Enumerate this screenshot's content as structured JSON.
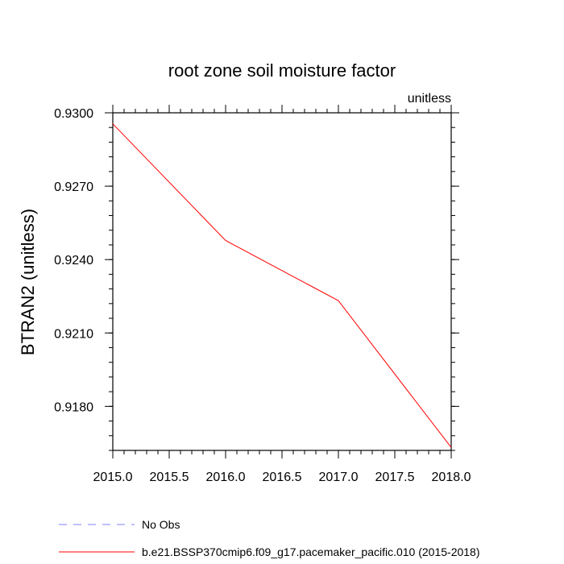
{
  "chart_data": {
    "type": "line",
    "title": "root zone soil moisture factor",
    "units_label": "unitless",
    "ylabel": "BTRAN2  (unitless)",
    "xlabel": "",
    "xlim": [
      2015.0,
      2018.0
    ],
    "ylim": [
      0.9162,
      0.93
    ],
    "x_ticks": [
      2015.0,
      2015.5,
      2016.0,
      2016.5,
      2017.0,
      2017.5,
      2018.0
    ],
    "x_tick_labels": [
      "2015.0",
      "2015.5",
      "2016.0",
      "2016.5",
      "2017.0",
      "2017.5",
      "2018.0"
    ],
    "y_ticks": [
      0.918,
      0.921,
      0.924,
      0.927,
      0.93
    ],
    "y_tick_labels": [
      "0.9180",
      "0.9210",
      "0.9240",
      "0.9270",
      "0.9300"
    ],
    "y_minor_step": 0.0006,
    "x_minor_step": 0.1,
    "series": [
      {
        "name": "b.e21.BSSP370cmip6.f09_g17.pacemaker_pacific.010 (2015-2018)",
        "color": "#ff0000",
        "dash": "solid",
        "x": [
          2015.0,
          2016.0,
          2017.0,
          2018.0
        ],
        "y": [
          0.92955,
          0.92478,
          0.92232,
          0.91632
        ]
      },
      {
        "name": "No Obs",
        "color": "#8080ff",
        "dash": "dashed",
        "x": [],
        "y": []
      }
    ],
    "legend_placement": "bottom-left",
    "grid": false
  }
}
